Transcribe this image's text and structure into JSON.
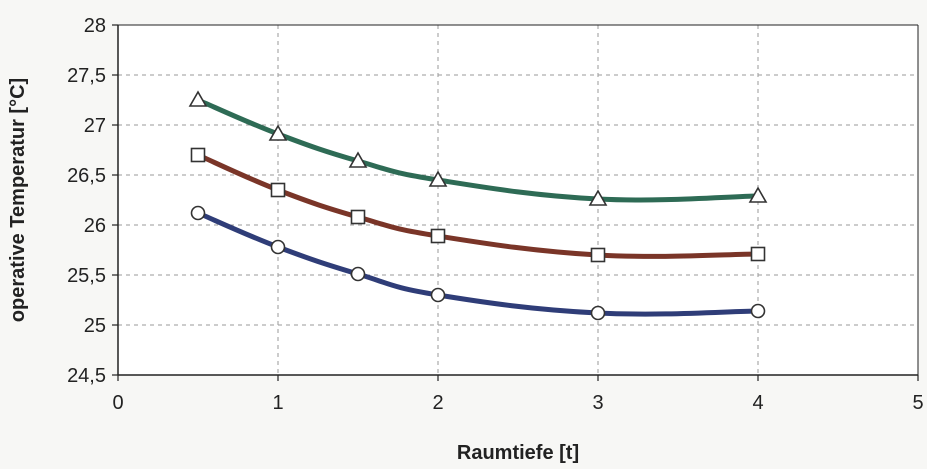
{
  "chart_data": {
    "type": "line",
    "title": "",
    "xlabel": "Raumtiefe [t]",
    "ylabel": "operative Temperatur [°C]",
    "xlim": [
      0,
      5
    ],
    "ylim": [
      24.5,
      28
    ],
    "x_ticks": [
      0,
      1,
      2,
      3,
      4,
      5
    ],
    "x_tick_labels": [
      "0",
      "1",
      "2",
      "3",
      "4",
      "5"
    ],
    "y_ticks": [
      24.5,
      25,
      25.5,
      26,
      26.5,
      27,
      27.5,
      28
    ],
    "y_tick_labels": [
      "24,5",
      "25",
      "25,5",
      "26",
      "26,5",
      "27",
      "27,5",
      "28"
    ],
    "grid": true,
    "legend": false,
    "x": [
      0.5,
      1,
      1.5,
      2,
      3,
      4
    ],
    "series": [
      {
        "marker": "triangle",
        "color": "#2e6b55",
        "values": [
          27.25,
          26.91,
          26.64,
          26.45,
          26.26,
          26.29
        ]
      },
      {
        "marker": "square",
        "color": "#7a3528",
        "values": [
          26.7,
          26.35,
          26.08,
          25.89,
          25.7,
          25.71
        ]
      },
      {
        "marker": "circle",
        "color": "#2f3d78",
        "values": [
          26.12,
          25.78,
          25.51,
          25.3,
          25.12,
          25.14
        ]
      }
    ]
  }
}
